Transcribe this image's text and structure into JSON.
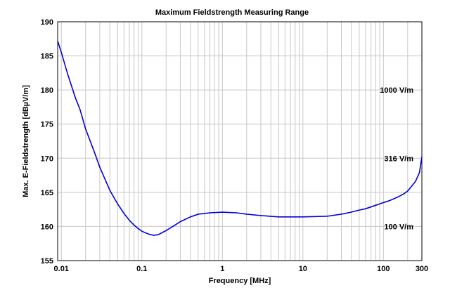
{
  "chart_data": {
    "type": "line",
    "title": "Maximum Fieldstrength Measuring Range",
    "xlabel": "Frequency [MHz]",
    "ylabel": "Max. E-Fieldstrength [dBµV/m]",
    "xscale": "log",
    "xlim": [
      0.009,
      300
    ],
    "ylim": [
      155,
      190
    ],
    "x_ticks": [
      {
        "value": 0.01,
        "label": "0.01"
      },
      {
        "value": 0.1,
        "label": "0.1"
      },
      {
        "value": 1,
        "label": "1"
      },
      {
        "value": 10,
        "label": "10"
      },
      {
        "value": 100,
        "label": "100"
      },
      {
        "value": 300,
        "label": "300"
      }
    ],
    "y_ticks": [
      155,
      160,
      165,
      170,
      175,
      180,
      185,
      190
    ],
    "grid": true,
    "line_color": "#0000dd",
    "series": [
      {
        "name": "Max. E-Fieldstrength",
        "x": [
          0.009,
          0.01,
          0.012,
          0.015,
          0.017,
          0.02,
          0.025,
          0.03,
          0.04,
          0.05,
          0.06,
          0.07,
          0.08,
          0.09,
          0.1,
          0.12,
          0.14,
          0.16,
          0.2,
          0.25,
          0.3,
          0.4,
          0.5,
          0.7,
          1,
          1.5,
          2,
          3,
          5,
          7,
          10,
          20,
          30,
          40,
          50,
          60,
          80,
          100,
          120,
          150,
          180,
          200,
          220,
          250,
          280,
          300
        ],
        "y": [
          187.2,
          185.5,
          182.3,
          178.8,
          177.2,
          174.3,
          171.3,
          168.7,
          165.3,
          163.3,
          161.9,
          160.9,
          160.2,
          159.7,
          159.3,
          158.9,
          158.7,
          158.8,
          159.4,
          160.1,
          160.7,
          161.4,
          161.8,
          162,
          162.1,
          162,
          161.8,
          161.6,
          161.4,
          161.4,
          161.4,
          161.5,
          161.8,
          162.1,
          162.4,
          162.6,
          163.1,
          163.5,
          163.8,
          164.3,
          164.8,
          165.2,
          165.8,
          166.6,
          167.9,
          170.2
        ]
      }
    ],
    "annotations": [
      {
        "text": "1000 V/m",
        "y": 180
      },
      {
        "text": "316 V/m",
        "y": 170
      },
      {
        "text": "100 V/m",
        "y": 160
      }
    ]
  }
}
